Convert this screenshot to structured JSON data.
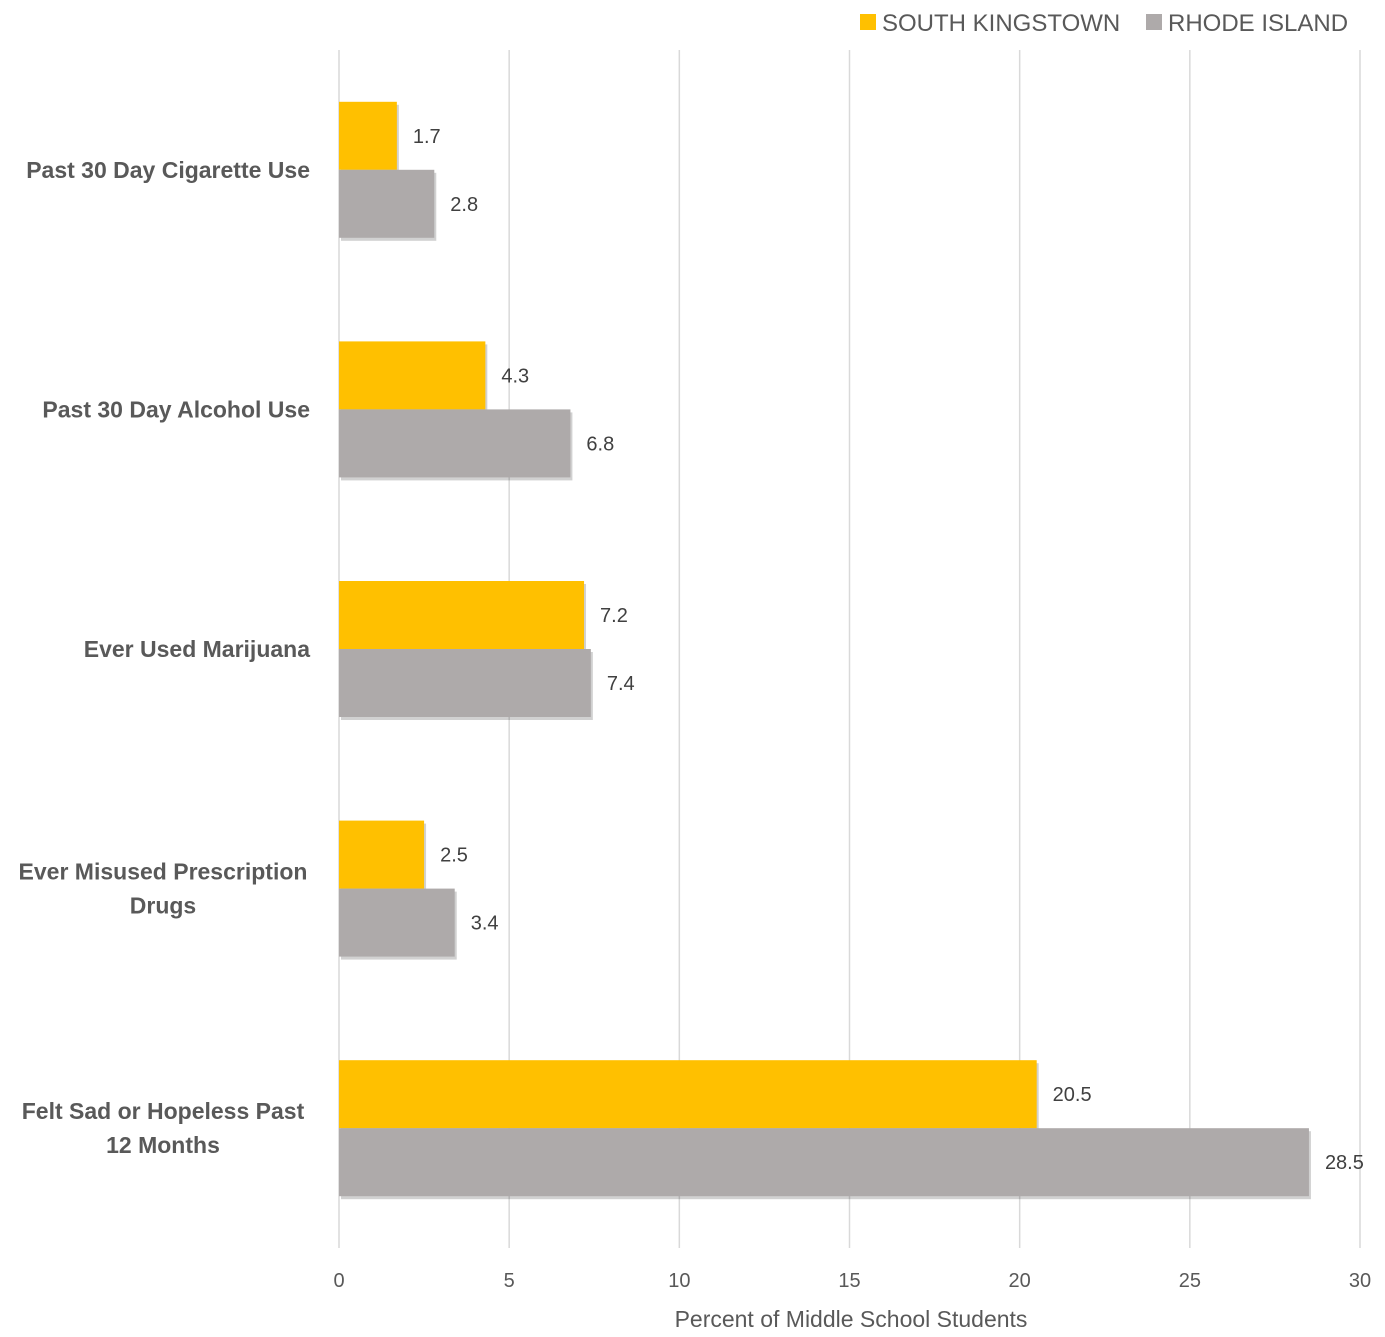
{
  "chart_data": {
    "type": "bar",
    "orientation": "horizontal",
    "categories": [
      [
        "Past 30 Day Cigarette Use"
      ],
      [
        "Past 30 Day Alcohol Use"
      ],
      [
        "Ever Used Marijuana"
      ],
      [
        "Ever Misused Prescription",
        "Drugs"
      ],
      [
        "Felt Sad or Hopeless Past",
        "12 Months"
      ]
    ],
    "series": [
      {
        "name": "SOUTH KINGSTOWN",
        "color": "#FFC000",
        "values": [
          1.7,
          4.3,
          7.2,
          2.5,
          20.5
        ],
        "labels": [
          "1.7",
          "4.3",
          "7.2",
          "2.5",
          "20.5"
        ]
      },
      {
        "name": "RHODE ISLAND",
        "color": "#AEAAAA",
        "values": [
          2.8,
          6.8,
          7.4,
          3.4,
          28.5
        ],
        "labels": [
          "2.8",
          "6.8",
          "7.4",
          "3.4",
          "28.5"
        ]
      }
    ],
    "xlabel": "Percent of Middle School Students",
    "ylabel": "",
    "xlim": [
      0,
      30
    ],
    "xticks": [
      0,
      5,
      10,
      15,
      20,
      25,
      30
    ],
    "xtick_labels": [
      "0",
      "5",
      "10",
      "15",
      "20",
      "25",
      "30"
    ],
    "grid": "vertical",
    "legend_position": "top-right"
  }
}
